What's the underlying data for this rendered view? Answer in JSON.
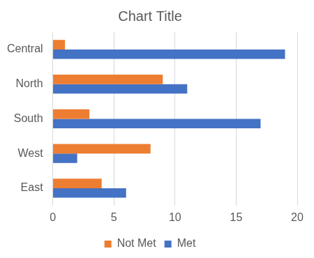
{
  "chart_data": {
    "type": "bar",
    "title": "Chart Title",
    "orientation": "horizontal",
    "categories": [
      "Central",
      "North",
      "South",
      "West",
      "East"
    ],
    "series": [
      {
        "name": "Not Met",
        "color": "#ed7d31",
        "values": [
          1,
          9,
          3,
          8,
          4
        ]
      },
      {
        "name": "Met",
        "color": "#4472c4",
        "values": [
          19,
          11,
          17,
          2,
          6
        ]
      }
    ],
    "xlim": [
      0,
      20
    ],
    "xticks": [
      0,
      5,
      10,
      15,
      20
    ],
    "grid": true,
    "legend": "bottom"
  }
}
